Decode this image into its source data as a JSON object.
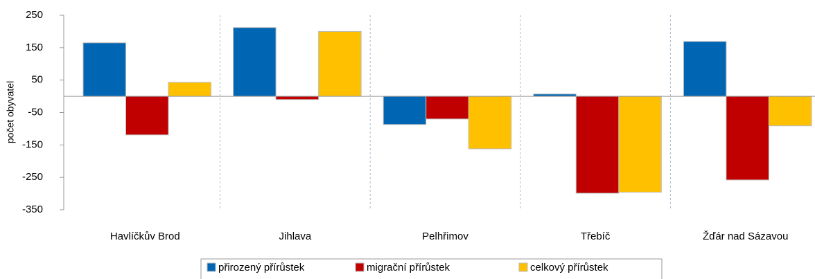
{
  "chart_data": {
    "type": "bar",
    "y_label": "počet obyvatel",
    "categories": [
      "Havlíčkův Brod",
      "Jihlava",
      "Pelhřimov",
      "Třebíč",
      "Žďár nad Sázavou"
    ],
    "series": [
      {
        "name": "přirozený přírůstek",
        "color": "#0066b3",
        "values": [
          165,
          212,
          -87,
          7,
          169
        ]
      },
      {
        "name": "migrační přírůstek",
        "color": "#c00000",
        "values": [
          -119,
          -10,
          -70,
          -299,
          -258
        ]
      },
      {
        "name": "celkový přírůstek",
        "color": "#ffc000",
        "values": [
          43,
          200,
          -162,
          -296,
          -91
        ]
      }
    ],
    "ylim": [
      -350,
      250
    ],
    "yticks": [
      -350,
      -250,
      -150,
      -50,
      50,
      150,
      250
    ],
    "legend": "bottom"
  }
}
